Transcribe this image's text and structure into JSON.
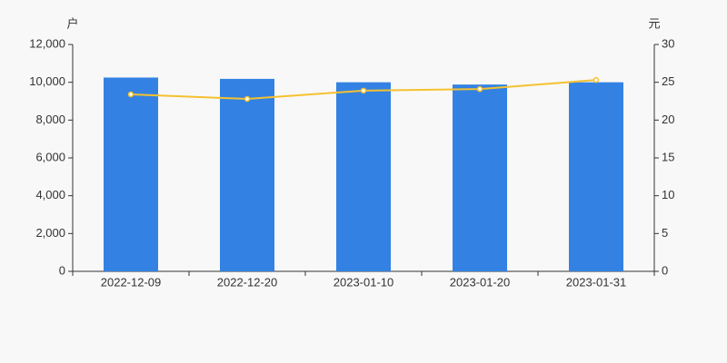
{
  "chart_data": {
    "type": "bar-line",
    "y_label": "户",
    "y2_label": "元",
    "categories": [
      "2022-12-09",
      "2022-12-20",
      "2023-01-10",
      "2023-01-20",
      "2023-01-31"
    ],
    "series": [
      {
        "type": "bar",
        "color": "#3382e3",
        "values": [
          10250,
          10180,
          10000,
          9880,
          10000
        ]
      },
      {
        "type": "line",
        "axis": "y2",
        "color": "#f5c12e",
        "values": [
          23.4,
          22.8,
          23.9,
          24.1,
          25.3
        ]
      }
    ],
    "ylim": [
      0,
      12000
    ],
    "yticks": [
      0,
      {
        "value": 2000,
        "label": "2,000"
      },
      {
        "value": 4000,
        "label": "4,000"
      },
      {
        "value": 6000,
        "label": "6,000"
      },
      {
        "value": 8000,
        "label": "8,000"
      },
      {
        "value": 10000,
        "label": "10,000"
      },
      {
        "value": 12000,
        "label": "12,000"
      }
    ],
    "y2lim": [
      0,
      30
    ],
    "y2ticks": [
      0,
      5,
      10,
      15,
      20,
      25,
      30
    ]
  }
}
